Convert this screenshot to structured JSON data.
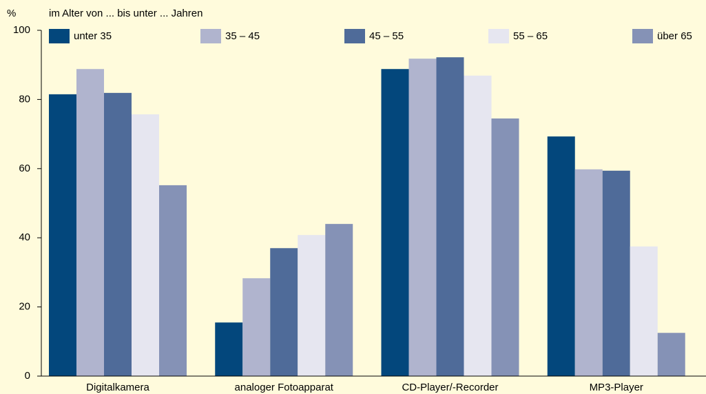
{
  "chart_data": {
    "type": "bar",
    "ylabel": "%",
    "subtitle": "im Alter von ... bis unter ... Jahren",
    "categories": [
      "Digitalkamera",
      "analoger Fotoapparat",
      "CD-Player/-Recorder",
      "MP3-Player"
    ],
    "series": [
      {
        "name": "unter 35",
        "color": "#03477c",
        "values": [
          81.5,
          15.5,
          88.8,
          69.3
        ]
      },
      {
        "name": "35 – 45",
        "color": "#b0b4ce",
        "values": [
          88.8,
          28.3,
          91.8,
          59.8
        ]
      },
      {
        "name": "45 – 55",
        "color": "#4f6b99",
        "values": [
          81.9,
          37,
          92.2,
          59.4
        ]
      },
      {
        "name": "55 – 65",
        "color": "#e6e6f0",
        "values": [
          75.7,
          40.8,
          86.9,
          37.5
        ]
      },
      {
        "name": "über 65",
        "color": "#8592b6",
        "values": [
          55.2,
          44,
          74.5,
          12.5
        ]
      }
    ],
    "ylim": [
      0,
      100
    ],
    "yticks": [
      0,
      20,
      40,
      60,
      80,
      100
    ],
    "grid": false,
    "legend": "top"
  }
}
